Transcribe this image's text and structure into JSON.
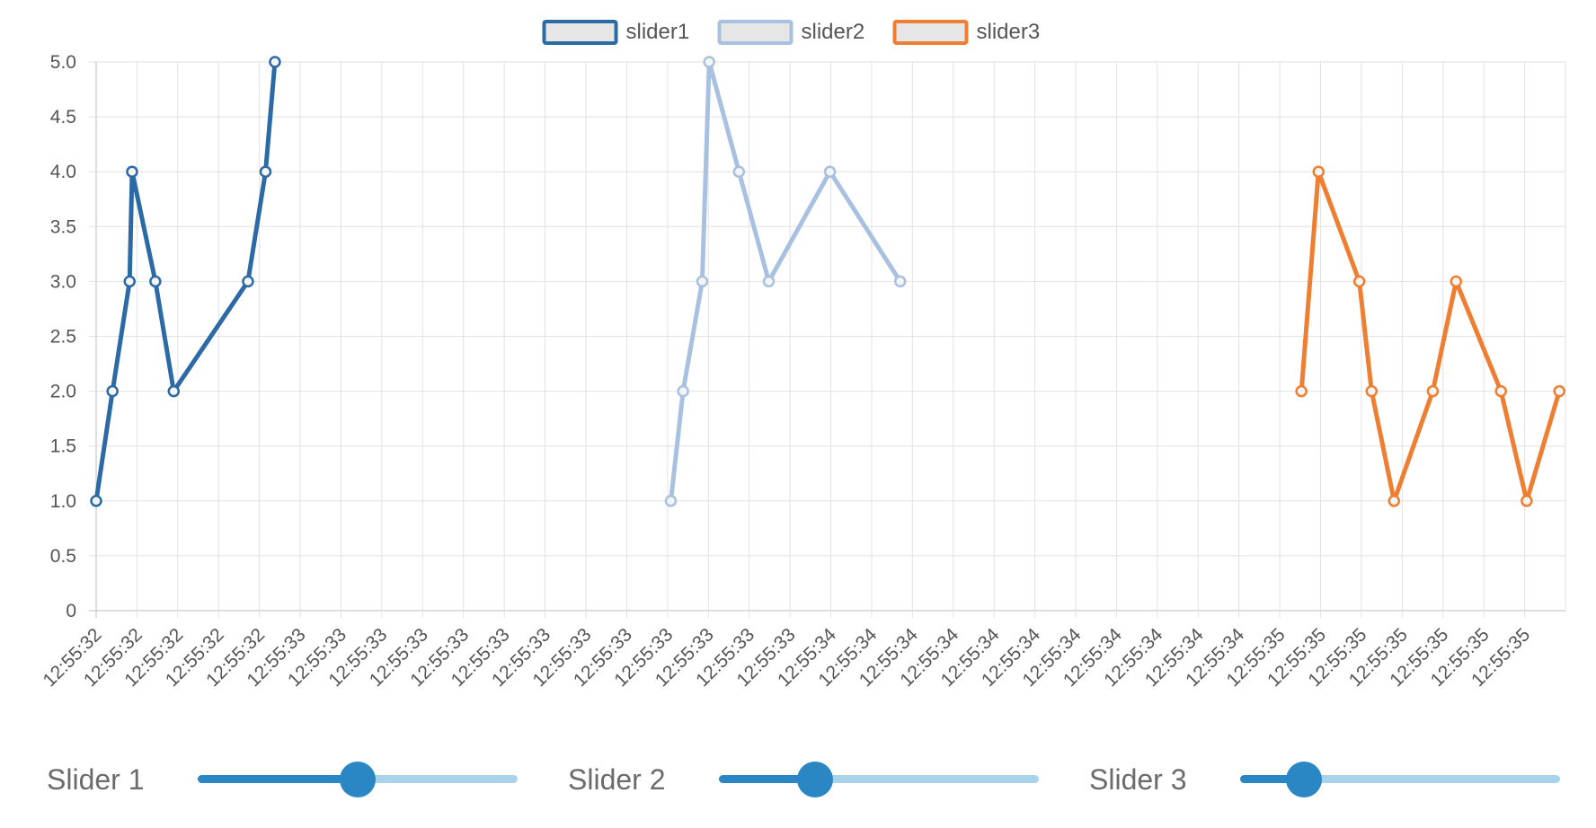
{
  "chart_data": {
    "type": "line",
    "ylim": [
      0,
      5
    ],
    "yticks": [
      "0",
      "0.5",
      "1.0",
      "1.5",
      "2.0",
      "2.5",
      "3.0",
      "3.5",
      "4.0",
      "4.5",
      "5.0"
    ],
    "categories": [
      "12:55:32",
      "12:55:32",
      "12:55:32",
      "12:55:32",
      "12:55:32",
      "12:55:33",
      "12:55:33",
      "12:55:33",
      "12:55:33",
      "12:55:33",
      "12:55:33",
      "12:55:33",
      "12:55:33",
      "12:55:33",
      "12:55:33",
      "12:55:33",
      "12:55:33",
      "12:55:33",
      "12:55:34",
      "12:55:34",
      "12:55:34",
      "12:55:34",
      "12:55:34",
      "12:55:34",
      "12:55:34",
      "12:55:34",
      "12:55:34",
      "12:55:34",
      "12:55:34",
      "12:55:35",
      "12:55:35",
      "12:55:35",
      "12:55:35",
      "12:55:35",
      "12:55:35",
      "12:55:35"
    ],
    "grid": true,
    "legend_position": "top",
    "series": [
      {
        "name": "slider1",
        "color": "#2c6aa6",
        "x": [
          0,
          0.4,
          0.82,
          0.88,
          1.45,
          1.9,
          3.72,
          4.15,
          4.38
        ],
        "y": [
          1,
          2,
          3,
          4,
          3,
          2,
          3,
          4,
          5
        ]
      },
      {
        "name": "slider2",
        "color": "#a8c1e1",
        "x": [
          14.08,
          14.38,
          14.85,
          15.02,
          15.75,
          16.48,
          17.98,
          19.7
        ],
        "y": [
          1,
          2,
          3,
          5,
          4,
          3,
          4,
          3
        ]
      },
      {
        "name": "slider3",
        "color": "#ee7f32",
        "x": [
          29.53,
          29.95,
          30.95,
          31.25,
          31.8,
          32.75,
          33.32,
          34.42,
          35.05,
          35.85
        ],
        "y": [
          2,
          4,
          3,
          2,
          1,
          2,
          3,
          2,
          1,
          2
        ]
      }
    ]
  },
  "sliders": [
    {
      "label": "Slider 1",
      "value": 0.5
    },
    {
      "label": "Slider 2",
      "value": 0.3
    },
    {
      "label": "Slider 3",
      "value": 0.2
    }
  ]
}
